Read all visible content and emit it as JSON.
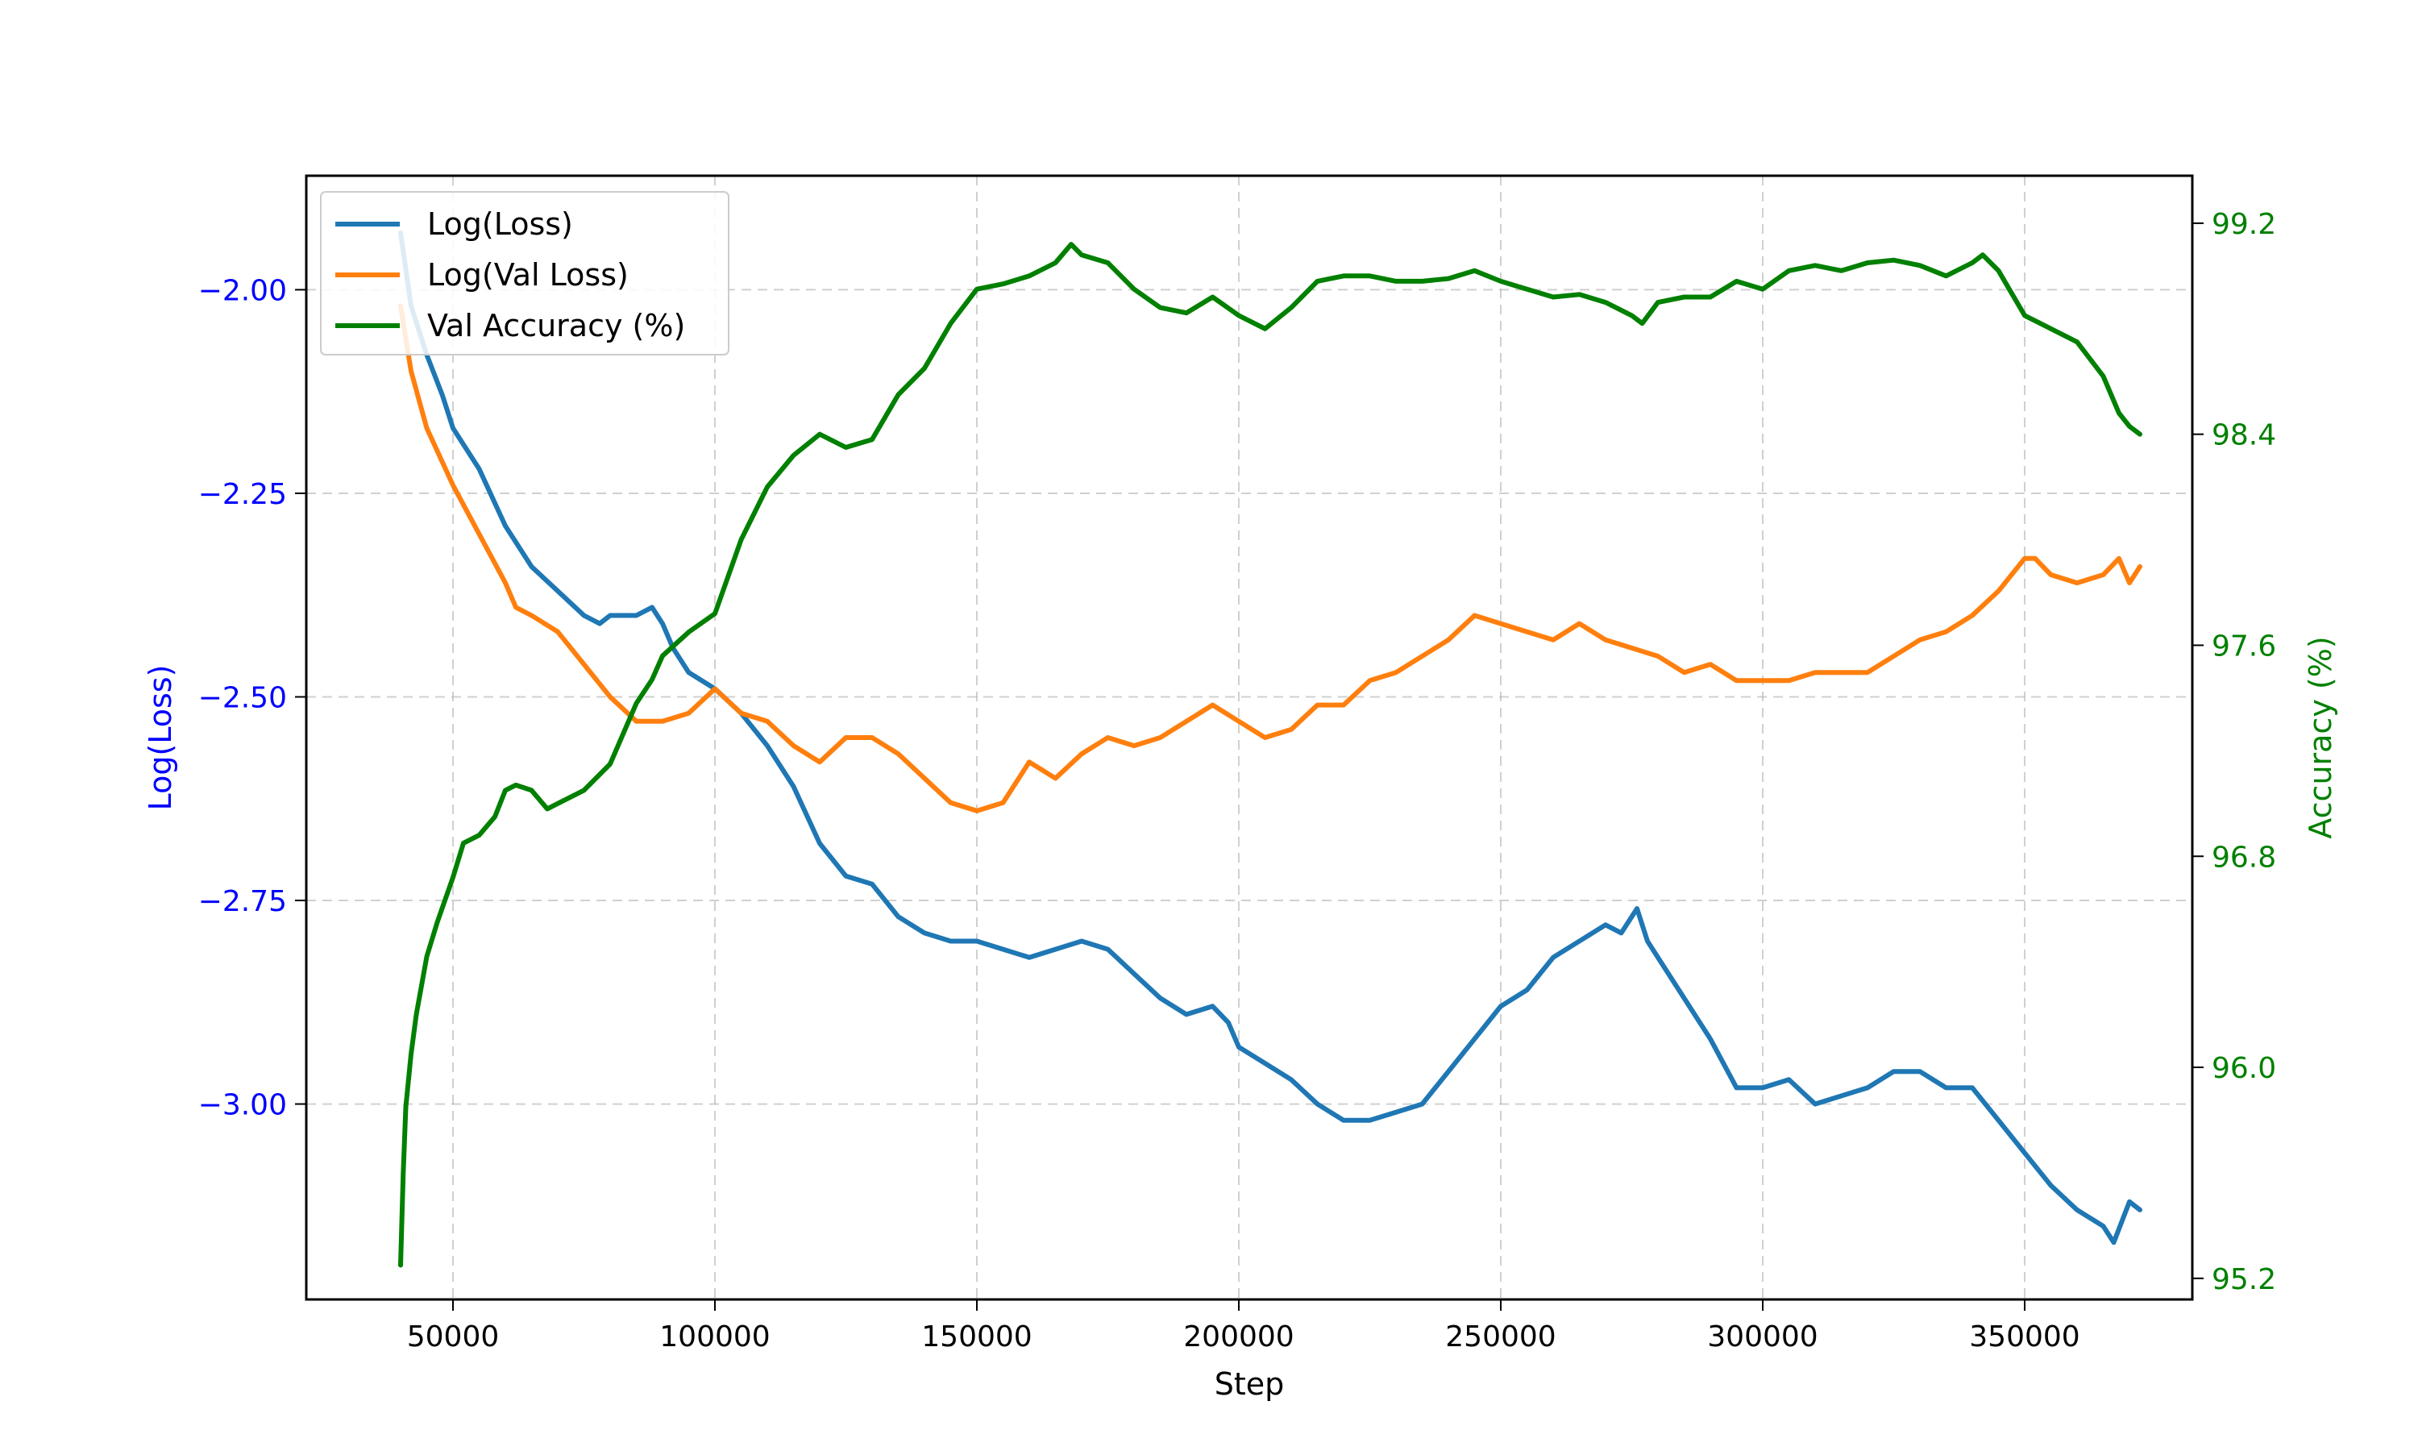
{
  "chart_data": {
    "type": "line",
    "title": "",
    "xlabel": "Step",
    "ylabel_left": "Log(Loss)",
    "ylabel_right": "Accuracy (%)",
    "xlim": [
      22000,
      382000
    ],
    "ylim_left": [
      -3.24,
      -1.86
    ],
    "ylim_right": [
      95.12,
      99.38
    ],
    "x_ticks": [
      50000,
      100000,
      150000,
      200000,
      250000,
      300000,
      350000
    ],
    "x_tick_labels": [
      "50000",
      "100000",
      "150000",
      "200000",
      "250000",
      "300000",
      "350000"
    ],
    "y_left_ticks": [
      -2.0,
      -2.25,
      -2.5,
      -2.75,
      -3.0
    ],
    "y_left_tick_labels": [
      "−2.00",
      "−2.25",
      "−2.50",
      "−2.75",
      "−3.00"
    ],
    "y_right_ticks": [
      99.2,
      98.4,
      97.6,
      96.8,
      96.0,
      95.2
    ],
    "y_right_tick_labels": [
      "99.2",
      "98.4",
      "97.6",
      "96.8",
      "96.0",
      "95.2"
    ],
    "grid": true,
    "legend_position": "top-left",
    "colors": {
      "loss": "#1f77b4",
      "val_loss": "#ff7f0e",
      "val_acc": "#008000",
      "left_axis": "#0000ff",
      "right_axis": "#008000"
    },
    "series": [
      {
        "name": "Log(Loss)",
        "axis": "left",
        "color": "#1f77b4",
        "x": [
          40000,
          42000,
          45000,
          48000,
          50000,
          55000,
          60000,
          65000,
          70000,
          75000,
          78000,
          80000,
          85000,
          88000,
          90000,
          92000,
          95000,
          100000,
          105000,
          110000,
          115000,
          120000,
          125000,
          130000,
          135000,
          140000,
          145000,
          150000,
          155000,
          160000,
          165000,
          170000,
          175000,
          180000,
          185000,
          190000,
          195000,
          198000,
          200000,
          205000,
          210000,
          215000,
          220000,
          225000,
          230000,
          235000,
          240000,
          245000,
          250000,
          255000,
          260000,
          265000,
          270000,
          273000,
          276000,
          278000,
          280000,
          285000,
          290000,
          295000,
          300000,
          305000,
          310000,
          315000,
          320000,
          325000,
          330000,
          335000,
          340000,
          345000,
          350000,
          355000,
          360000,
          365000,
          367000,
          370000,
          372000
        ],
        "y": [
          -1.93,
          -2.02,
          -2.08,
          -2.13,
          -2.17,
          -2.22,
          -2.29,
          -2.34,
          -2.37,
          -2.4,
          -2.41,
          -2.4,
          -2.4,
          -2.39,
          -2.41,
          -2.44,
          -2.47,
          -2.49,
          -2.52,
          -2.56,
          -2.61,
          -2.68,
          -2.72,
          -2.73,
          -2.77,
          -2.79,
          -2.8,
          -2.8,
          -2.81,
          -2.82,
          -2.81,
          -2.8,
          -2.81,
          -2.84,
          -2.87,
          -2.89,
          -2.88,
          -2.9,
          -2.93,
          -2.95,
          -2.97,
          -3.0,
          -3.02,
          -3.02,
          -3.01,
          -3.0,
          -2.96,
          -2.92,
          -2.88,
          -2.86,
          -2.82,
          -2.8,
          -2.78,
          -2.79,
          -2.76,
          -2.8,
          -2.82,
          -2.87,
          -2.92,
          -2.98,
          -2.98,
          -2.97,
          -3.0,
          -2.99,
          -2.98,
          -2.96,
          -2.96,
          -2.98,
          -2.98,
          -3.02,
          -3.06,
          -3.1,
          -3.13,
          -3.15,
          -3.17,
          -3.12,
          -3.13
        ]
      },
      {
        "name": "Log(Val Loss)",
        "axis": "left",
        "color": "#ff7f0e",
        "x": [
          40000,
          42000,
          45000,
          50000,
          55000,
          60000,
          62000,
          65000,
          70000,
          75000,
          80000,
          85000,
          90000,
          95000,
          100000,
          105000,
          110000,
          115000,
          120000,
          125000,
          130000,
          135000,
          140000,
          145000,
          150000,
          155000,
          160000,
          165000,
          170000,
          175000,
          180000,
          185000,
          190000,
          195000,
          200000,
          205000,
          210000,
          215000,
          220000,
          225000,
          230000,
          235000,
          240000,
          245000,
          250000,
          255000,
          260000,
          265000,
          270000,
          275000,
          280000,
          285000,
          290000,
          295000,
          300000,
          305000,
          310000,
          315000,
          320000,
          325000,
          330000,
          335000,
          340000,
          345000,
          350000,
          352000,
          355000,
          360000,
          365000,
          368000,
          370000,
          372000
        ],
        "y": [
          -2.02,
          -2.1,
          -2.17,
          -2.24,
          -2.3,
          -2.36,
          -2.39,
          -2.4,
          -2.42,
          -2.46,
          -2.5,
          -2.53,
          -2.53,
          -2.52,
          -2.49,
          -2.52,
          -2.53,
          -2.56,
          -2.58,
          -2.55,
          -2.55,
          -2.57,
          -2.6,
          -2.63,
          -2.64,
          -2.63,
          -2.58,
          -2.6,
          -2.57,
          -2.55,
          -2.56,
          -2.55,
          -2.53,
          -2.51,
          -2.53,
          -2.55,
          -2.54,
          -2.51,
          -2.51,
          -2.48,
          -2.47,
          -2.45,
          -2.43,
          -2.4,
          -2.41,
          -2.42,
          -2.43,
          -2.41,
          -2.43,
          -2.44,
          -2.45,
          -2.47,
          -2.46,
          -2.48,
          -2.48,
          -2.48,
          -2.47,
          -2.47,
          -2.47,
          -2.45,
          -2.43,
          -2.42,
          -2.4,
          -2.37,
          -2.33,
          -2.33,
          -2.35,
          -2.36,
          -2.35,
          -2.33,
          -2.36,
          -2.34
        ]
      },
      {
        "name": "Val Accuracy (%)",
        "axis": "right",
        "color": "#008000",
        "x": [
          40000,
          40500,
          41000,
          42000,
          43000,
          45000,
          47000,
          50000,
          52000,
          55000,
          58000,
          60000,
          62000,
          65000,
          68000,
          70000,
          75000,
          80000,
          85000,
          88000,
          90000,
          95000,
          100000,
          105000,
          110000,
          115000,
          120000,
          125000,
          130000,
          135000,
          140000,
          145000,
          150000,
          155000,
          160000,
          165000,
          168000,
          170000,
          175000,
          180000,
          185000,
          190000,
          195000,
          200000,
          205000,
          210000,
          215000,
          220000,
          225000,
          230000,
          235000,
          240000,
          245000,
          250000,
          255000,
          260000,
          265000,
          270000,
          275000,
          277000,
          280000,
          285000,
          290000,
          295000,
          300000,
          305000,
          310000,
          315000,
          320000,
          325000,
          330000,
          335000,
          340000,
          342000,
          345000,
          350000,
          355000,
          360000,
          365000,
          368000,
          370000,
          372000
        ],
        "y": [
          95.25,
          95.6,
          95.85,
          96.05,
          96.2,
          96.42,
          96.55,
          96.72,
          96.85,
          96.88,
          96.95,
          97.05,
          97.07,
          97.05,
          96.98,
          97.0,
          97.05,
          97.15,
          97.38,
          97.47,
          97.56,
          97.65,
          97.72,
          98.0,
          98.2,
          98.32,
          98.4,
          98.35,
          98.38,
          98.55,
          98.65,
          98.82,
          98.95,
          98.97,
          99.0,
          99.05,
          99.12,
          99.08,
          99.05,
          98.95,
          98.88,
          98.86,
          98.92,
          98.85,
          98.8,
          98.88,
          98.98,
          99.0,
          99.0,
          98.98,
          98.98,
          98.99,
          99.02,
          98.98,
          98.95,
          98.92,
          98.93,
          98.9,
          98.85,
          98.82,
          98.9,
          98.92,
          98.92,
          98.98,
          98.95,
          99.02,
          99.04,
          99.02,
          99.05,
          99.06,
          99.04,
          99.0,
          99.05,
          99.08,
          99.02,
          98.85,
          98.8,
          98.75,
          98.62,
          98.48,
          98.43,
          98.4
        ]
      }
    ]
  }
}
